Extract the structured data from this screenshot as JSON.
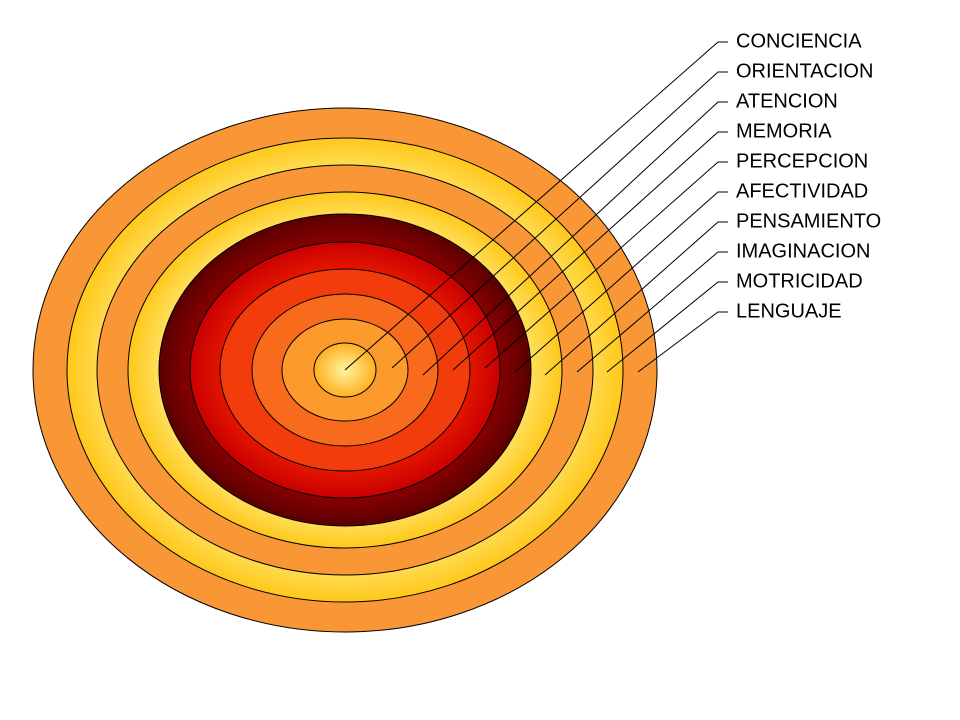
{
  "labels": [
    "CONCIENCIA",
    "ORIENTACION",
    "ATENCION",
    "MEMORIA",
    "PERCEPCION",
    "AFECTIVIDAD",
    "PENSAMIENTO",
    "IMAGINACION",
    "MOTRICIDAD",
    "LENGUAJE"
  ]
}
